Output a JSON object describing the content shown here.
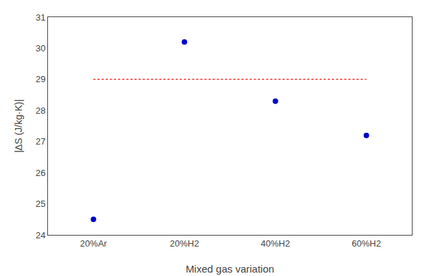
{
  "chart_data": {
    "type": "scatter",
    "categories": [
      "20%Ar",
      "20%H2",
      "40%H2",
      "60%H2"
    ],
    "xlabel": "Mixed gas variation",
    "ylabel": "|∆S (J/kg·K)|",
    "ylim": [
      24,
      31
    ],
    "yticks": [
      24,
      25,
      26,
      27,
      28,
      29,
      30,
      31
    ],
    "grid": false,
    "series": [
      {
        "type": "scatter",
        "marker": "circle",
        "color": "#0000CC",
        "values": [
          24.5,
          30.2,
          28.3,
          27.2
        ]
      },
      {
        "type": "line",
        "line_style": "dot",
        "color": "#FF2222",
        "values": [
          29,
          29,
          29,
          29
        ]
      }
    ]
  }
}
